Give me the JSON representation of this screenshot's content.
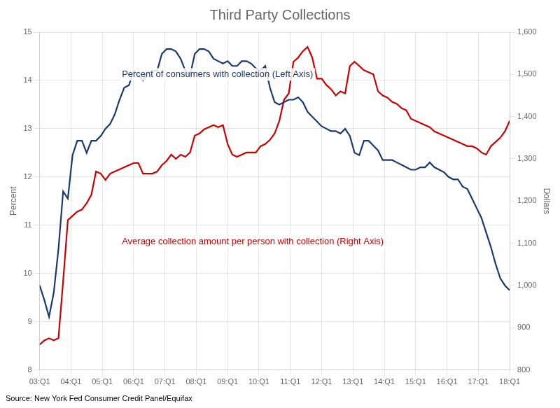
{
  "chart_data": {
    "type": "line",
    "title": "Third Party Collections",
    "ylabel": "Percent",
    "y2label": "Dollars",
    "source": "Source: New York Fed Consumer Credit Panel/Equifax",
    "x": [
      0,
      0.6,
      1.2,
      1.8,
      2.4,
      3,
      3.6,
      4.2,
      4.8,
      5.4,
      6,
      6.6,
      7.2,
      7.8,
      8.4,
      9,
      9.6,
      10.2,
      10.8,
      11.4,
      12,
      12.6,
      13.2,
      13.8,
      14.4,
      15,
      15.6,
      16.2,
      16.8,
      17.4,
      18,
      18.6,
      19.2,
      19.8,
      20.4,
      21,
      21.6,
      22.2,
      22.8,
      23.4,
      24,
      24.6,
      25.2,
      25.8,
      26.4,
      27,
      27.6,
      28.2,
      28.8,
      29.4,
      30,
      30.6,
      31.2,
      31.8,
      32.4,
      33,
      33.6,
      34.2,
      34.8,
      35.4,
      36,
      36.6,
      37.2,
      37.8,
      38.4,
      39,
      39.6,
      40.2,
      40.8,
      41.4,
      42,
      42.6,
      43.2,
      43.8,
      44.4,
      45,
      45.6,
      46.2,
      46.8,
      47.4,
      48,
      48.6,
      49.2,
      49.8,
      50.4,
      51,
      51.6,
      52.2,
      52.8,
      53.4,
      54,
      54.6,
      55.2,
      55.8,
      56.4,
      57,
      57.6,
      58.2,
      58.8,
      59.4,
      60
    ],
    "series": [
      {
        "name": "Percent of consumers with collection (Left Axis)",
        "color": "#1a3a6e",
        "axis": "y",
        "values": [
          9.75,
          9.45,
          9.1,
          9.6,
          10.5,
          11.7,
          11.55,
          12.45,
          12.75,
          12.75,
          12.5,
          12.75,
          12.75,
          12.85,
          13.0,
          13.1,
          13.3,
          13.6,
          13.85,
          13.9,
          14.2,
          14.1,
          14.0,
          14.15,
          14.2,
          14.2,
          14.55,
          14.65,
          14.65,
          14.6,
          14.45,
          14.2,
          14.1,
          14.55,
          14.65,
          14.65,
          14.6,
          14.45,
          14.4,
          14.35,
          14.4,
          14.3,
          14.3,
          14.4,
          14.4,
          14.35,
          14.25,
          14.2,
          14.3,
          13.85,
          13.55,
          13.5,
          13.55,
          13.6,
          13.6,
          13.65,
          13.55,
          13.35,
          13.25,
          13.15,
          13.05,
          13.0,
          12.95,
          12.95,
          12.9,
          13.0,
          12.85,
          12.5,
          12.45,
          12.75,
          12.75,
          12.65,
          12.55,
          12.35,
          12.35,
          12.35,
          12.3,
          12.25,
          12.2,
          12.15,
          12.15,
          12.2,
          12.2,
          12.3,
          12.2,
          12.15,
          12.1,
          12.0,
          11.95,
          11.95,
          11.8,
          11.75,
          11.55,
          11.35,
          11.15,
          10.85,
          10.55,
          10.2,
          9.9,
          9.75,
          9.65
        ]
      },
      {
        "name": "Average collection amount per person with collection (Right Axis)",
        "color": "#cc0000",
        "axis": "y2",
        "values": [
          860,
          870,
          875,
          870,
          875,
          1010,
          1155,
          1165,
          1175,
          1180,
          1195,
          1215,
          1270,
          1265,
          1250,
          1265,
          1270,
          1275,
          1280,
          1285,
          1290,
          1290,
          1265,
          1265,
          1265,
          1270,
          1285,
          1295,
          1310,
          1300,
          1310,
          1305,
          1315,
          1355,
          1360,
          1370,
          1375,
          1380,
          1375,
          1380,
          1335,
          1310,
          1305,
          1310,
          1315,
          1315,
          1315,
          1330,
          1335,
          1345,
          1360,
          1390,
          1440,
          1455,
          1530,
          1540,
          1555,
          1565,
          1540,
          1490,
          1490,
          1475,
          1465,
          1450,
          1460,
          1455,
          1520,
          1530,
          1520,
          1510,
          1505,
          1500,
          1460,
          1450,
          1445,
          1435,
          1430,
          1420,
          1415,
          1395,
          1390,
          1385,
          1380,
          1375,
          1365,
          1360,
          1355,
          1350,
          1345,
          1340,
          1335,
          1330,
          1330,
          1325,
          1315,
          1310,
          1330,
          1340,
          1350,
          1365,
          1390
        ]
      }
    ],
    "xlim": [
      0,
      60
    ],
    "xticks": [
      {
        "value": 0,
        "label": "03:Q1"
      },
      {
        "value": 4,
        "label": "04:Q1"
      },
      {
        "value": 8,
        "label": "05:Q1"
      },
      {
        "value": 12,
        "label": "06:Q1"
      },
      {
        "value": 16,
        "label": "07:Q1"
      },
      {
        "value": 20,
        "label": "08:Q1"
      },
      {
        "value": 24,
        "label": "09:Q1"
      },
      {
        "value": 28,
        "label": "10:Q1"
      },
      {
        "value": 32,
        "label": "11:Q1"
      },
      {
        "value": 36,
        "label": "12:Q1"
      },
      {
        "value": 40,
        "label": "13:Q1"
      },
      {
        "value": 44,
        "label": "14:Q1"
      },
      {
        "value": 48,
        "label": "15:Q1"
      },
      {
        "value": 52,
        "label": "16:Q1"
      },
      {
        "value": 56,
        "label": "17:Q1"
      },
      {
        "value": 60,
        "label": "18:Q1"
      }
    ],
    "ylim": [
      8,
      15
    ],
    "yticks": [
      8,
      9,
      10,
      11,
      12,
      13,
      14,
      15
    ],
    "y2lim": [
      800,
      1600
    ],
    "y2ticks": [
      800,
      900,
      {
        "value": 1000,
        "label": "1,000"
      },
      {
        "value": 1100,
        "label": "1,100"
      },
      {
        "value": 1200,
        "label": "1,200"
      },
      {
        "value": 1300,
        "label": "1,300"
      },
      {
        "value": 1400,
        "label": "1,400"
      },
      {
        "value": 1500,
        "label": "1,500"
      },
      {
        "value": 1600,
        "label": "1,600"
      }
    ],
    "grid": true
  }
}
